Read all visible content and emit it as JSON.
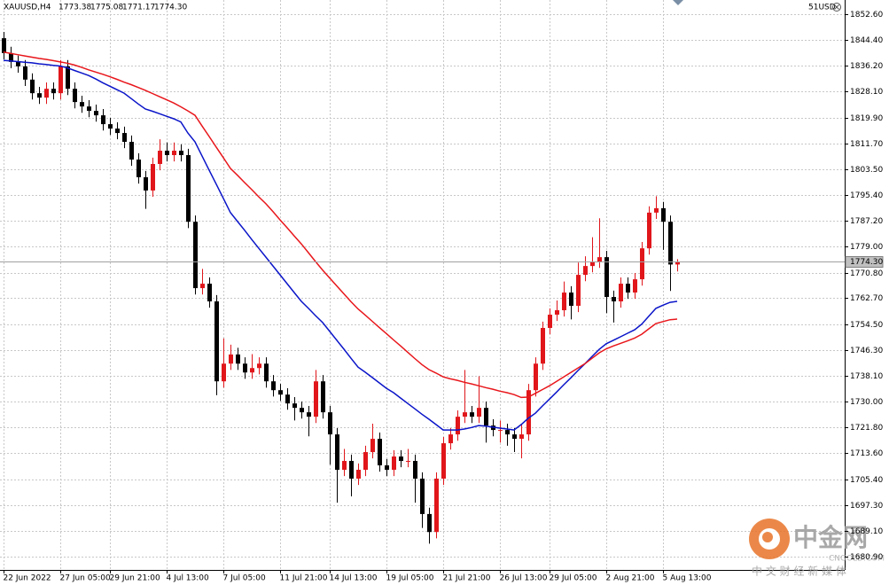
{
  "chart_data": {
    "type": "candlestick",
    "symbol": "XAUUSD,H4",
    "header_values": [
      "1773.38",
      "1775.08",
      "1771.17",
      "1774.30"
    ],
    "account": "51USD",
    "watermark": {
      "name": "中金网",
      "site": "CNGOLD.COM",
      "slogan": "中 文 财 经 新 媒 体"
    },
    "categories": [
      "22 Jun 2022",
      null,
      null,
      null,
      null,
      null,
      null,
      null,
      "27 Jun 05:00",
      null,
      null,
      null,
      null,
      null,
      null,
      "29 Jun 21:00",
      null,
      null,
      null,
      null,
      null,
      null,
      null,
      "4 Jul 13:00",
      null,
      null,
      null,
      null,
      null,
      null,
      null,
      "7 Jul 05:00",
      null,
      null,
      null,
      null,
      null,
      null,
      null,
      "11 Jul 21:00",
      null,
      null,
      null,
      null,
      null,
      null,
      "14 Jul 13:00",
      null,
      null,
      null,
      null,
      null,
      null,
      null,
      "19 Jul 05:00",
      null,
      null,
      null,
      null,
      null,
      null,
      null,
      "21 Jul 21:00",
      null,
      null,
      null,
      null,
      null,
      null,
      null,
      "26 Jul 13:00",
      null,
      null,
      null,
      null,
      null,
      null,
      "29 Jul 05:00",
      null,
      null,
      null,
      null,
      null,
      null,
      null,
      "2 Aug 21:00",
      null,
      null,
      null,
      null,
      null,
      null,
      null,
      "5 Aug 13:00",
      null,
      null
    ],
    "open": [
      1845.0,
      1840.3,
      1837.5,
      1836.1,
      1831.9,
      1827.6,
      1826.2,
      1829.0,
      1827.6,
      1836.1,
      1829.0,
      1824.8,
      1823.4,
      1822.0,
      1820.6,
      1817.8,
      1816.4,
      1815.0,
      1812.2,
      1806.6,
      1801.0,
      1796.8,
      1805.2,
      1809.4,
      1808.0,
      1809.4,
      1808.0,
      1786.9,
      1765.9,
      1767.3,
      1761.7,
      1736.4,
      1742.0,
      1744.9,
      1742.0,
      1739.2,
      1740.6,
      1742.0,
      1736.4,
      1733.6,
      1732.2,
      1729.4,
      1728.0,
      1726.6,
      1725.2,
      1736.4,
      1726.6,
      1719.6,
      1708.4,
      1711.2,
      1705.6,
      1708.4,
      1714.0,
      1718.2,
      1709.8,
      1708.4,
      1712.6,
      1711.2,
      1711.2,
      1705.6,
      1694.4,
      1688.7,
      1705.6,
      1716.8,
      1719.6,
      1725.2,
      1726.6,
      1725.2,
      1728.0,
      1722.4,
      1721.0,
      1721.0,
      1719.6,
      1718.2,
      1719.6,
      1733.6,
      1742.0,
      1753.3,
      1757.5,
      1758.9,
      1764.5,
      1760.3,
      1770.1,
      1772.9,
      1774.3,
      1775.7,
      1763.1,
      1761.7,
      1767.3,
      1764.5,
      1768.7,
      1778.5,
      1789.8,
      1791.2,
      1786.9,
      1773.38
    ],
    "high": [
      1847.0,
      1842.3,
      1839.5,
      1838.1,
      1833.9,
      1829.6,
      1831.0,
      1831.0,
      1838.1,
      1838.1,
      1831.0,
      1826.8,
      1825.4,
      1824.0,
      1822.6,
      1819.8,
      1818.4,
      1817.0,
      1814.2,
      1808.6,
      1803.0,
      1807.2,
      1813.0,
      1812.0,
      1812.0,
      1811.4,
      1810.0,
      1788.9,
      1772.0,
      1769.3,
      1763.7,
      1750.0,
      1748.0,
      1747.0,
      1744.0,
      1745.0,
      1744.0,
      1744.0,
      1738.4,
      1735.6,
      1734.2,
      1731.4,
      1730.0,
      1728.6,
      1740.0,
      1738.4,
      1728.6,
      1721.6,
      1715.0,
      1713.2,
      1710.4,
      1716.0,
      1723.0,
      1720.2,
      1711.8,
      1714.6,
      1714.6,
      1715.0,
      1713.2,
      1707.6,
      1696.4,
      1707.6,
      1718.8,
      1721.6,
      1727.2,
      1740.0,
      1728.6,
      1738.0,
      1730.0,
      1724.4,
      1724.0,
      1723.0,
      1721.6,
      1723.0,
      1735.6,
      1744.0,
      1755.3,
      1759.5,
      1762.0,
      1768.0,
      1766.5,
      1774.0,
      1776.0,
      1782.0,
      1788.0,
      1777.7,
      1765.1,
      1769.3,
      1769.3,
      1770.7,
      1780.5,
      1791.8,
      1795.0,
      1793.2,
      1788.9,
      1775.08
    ],
    "low": [
      1838.3,
      1835.5,
      1834.1,
      1829.9,
      1825.6,
      1824.2,
      1824.2,
      1825.6,
      1825.6,
      1827.0,
      1822.8,
      1821.4,
      1820.0,
      1818.6,
      1815.8,
      1814.4,
      1813.0,
      1810.2,
      1804.6,
      1799.0,
      1791.0,
      1794.8,
      1803.2,
      1806.0,
      1806.0,
      1806.0,
      1784.9,
      1763.9,
      1763.9,
      1759.7,
      1732.0,
      1734.4,
      1740.0,
      1740.0,
      1737.2,
      1737.2,
      1738.6,
      1734.4,
      1731.6,
      1730.2,
      1727.4,
      1724.0,
      1724.6,
      1719.0,
      1723.2,
      1724.6,
      1710.0,
      1698.0,
      1706.4,
      1700.0,
      1703.6,
      1706.4,
      1712.0,
      1707.8,
      1706.4,
      1706.4,
      1709.2,
      1709.2,
      1698.0,
      1690.0,
      1685.0,
      1686.7,
      1703.6,
      1714.8,
      1717.6,
      1723.2,
      1723.2,
      1723.2,
      1717.0,
      1719.0,
      1717.0,
      1716.0,
      1714.0,
      1712.0,
      1717.6,
      1731.6,
      1740.0,
      1751.3,
      1755.5,
      1756.9,
      1756.0,
      1758.3,
      1768.1,
      1770.9,
      1772.3,
      1758.0,
      1755.0,
      1759.7,
      1762.5,
      1762.5,
      1766.7,
      1776.5,
      1787.8,
      1778.0,
      1765.0,
      1771.17
    ],
    "close": [
      1840.3,
      1837.5,
      1836.1,
      1831.9,
      1827.6,
      1826.2,
      1829.0,
      1827.6,
      1836.1,
      1829.0,
      1824.8,
      1823.4,
      1822.0,
      1820.6,
      1817.8,
      1816.4,
      1815.0,
      1812.2,
      1806.6,
      1801.0,
      1796.8,
      1805.2,
      1809.4,
      1808.0,
      1809.4,
      1808.0,
      1786.9,
      1765.9,
      1767.3,
      1761.7,
      1736.4,
      1742.0,
      1744.9,
      1742.0,
      1739.2,
      1740.6,
      1742.0,
      1736.4,
      1733.6,
      1732.2,
      1729.4,
      1728.0,
      1726.6,
      1725.2,
      1736.4,
      1726.6,
      1719.6,
      1708.4,
      1711.2,
      1705.6,
      1708.4,
      1714.0,
      1718.2,
      1709.8,
      1708.4,
      1712.6,
      1711.2,
      1711.2,
      1705.6,
      1694.4,
      1688.7,
      1705.6,
      1716.8,
      1719.6,
      1725.2,
      1726.6,
      1725.2,
      1728.0,
      1722.4,
      1721.0,
      1721.0,
      1719.6,
      1718.2,
      1719.6,
      1733.6,
      1742.0,
      1753.3,
      1757.5,
      1758.9,
      1764.5,
      1760.3,
      1770.1,
      1772.9,
      1774.3,
      1775.7,
      1763.1,
      1761.7,
      1767.3,
      1764.5,
      1768.7,
      1778.5,
      1789.8,
      1791.2,
      1786.9,
      1773.38,
      1774.3
    ],
    "up_color": "#e0161b",
    "down_color": "#000000",
    "lines": [
      {
        "color": "#0a14c8",
        "values": [
          1838.0,
          1837.8,
          1837.6,
          1837.4,
          1837.2,
          1836.9,
          1836.7,
          1836.4,
          1836.2,
          1835.6,
          1834.8,
          1834.0,
          1833.2,
          1832.1,
          1830.9,
          1829.8,
          1828.7,
          1827.6,
          1825.9,
          1824.2,
          1822.6,
          1821.9,
          1821.1,
          1820.3,
          1819.5,
          1818.5,
          1815.0,
          1812.2,
          1807.7,
          1803.2,
          1798.8,
          1794.3,
          1789.8,
          1787.0,
          1784.2,
          1781.3,
          1778.5,
          1775.7,
          1772.9,
          1770.1,
          1767.3,
          1764.5,
          1761.7,
          1759.5,
          1757.2,
          1755.0,
          1752.2,
          1749.4,
          1746.6,
          1743.7,
          1740.9,
          1739.3,
          1737.6,
          1735.9,
          1734.2,
          1732.8,
          1731.1,
          1729.4,
          1727.7,
          1726.0,
          1724.4,
          1722.7,
          1721.0,
          1721.0,
          1721.0,
          1721.3,
          1721.8,
          1722.4,
          1722.2,
          1721.9,
          1721.6,
          1721.3,
          1721.0,
          1722.7,
          1724.7,
          1726.3,
          1728.6,
          1730.8,
          1733.0,
          1735.3,
          1737.5,
          1739.8,
          1742.0,
          1744.3,
          1746.5,
          1748.3,
          1749.4,
          1750.5,
          1751.6,
          1752.7,
          1754.5,
          1757.0,
          1759.5,
          1760.5,
          1761.4,
          1761.7
        ]
      },
      {
        "color": "#e8161b",
        "values": [
          1840.6,
          1840.2,
          1839.8,
          1839.4,
          1839.0,
          1838.6,
          1838.3,
          1837.9,
          1837.5,
          1837.1,
          1836.5,
          1835.8,
          1835.0,
          1834.3,
          1833.6,
          1832.8,
          1832.0,
          1831.1,
          1830.3,
          1829.4,
          1828.5,
          1827.5,
          1826.5,
          1825.5,
          1824.5,
          1823.3,
          1822.0,
          1820.6,
          1817.2,
          1813.9,
          1810.5,
          1807.2,
          1803.8,
          1801.6,
          1799.3,
          1797.1,
          1794.8,
          1792.6,
          1790.1,
          1787.5,
          1785.0,
          1782.4,
          1779.9,
          1777.1,
          1774.3,
          1771.6,
          1769.1,
          1766.6,
          1764.1,
          1761.6,
          1759.3,
          1757.4,
          1755.4,
          1753.4,
          1751.5,
          1749.5,
          1747.6,
          1745.6,
          1743.6,
          1741.7,
          1740.1,
          1739.0,
          1737.8,
          1737.2,
          1736.7,
          1736.1,
          1735.6,
          1735.0,
          1734.4,
          1733.9,
          1733.3,
          1732.8,
          1732.2,
          1731.3,
          1731.4,
          1732.6,
          1733.8,
          1735.0,
          1736.4,
          1737.8,
          1739.2,
          1740.6,
          1742.0,
          1743.7,
          1745.4,
          1746.7,
          1747.6,
          1748.4,
          1749.2,
          1750.1,
          1751.3,
          1753.0,
          1754.7,
          1755.3,
          1755.9,
          1756.1
        ]
      }
    ],
    "current_price": {
      "value": 1774.3,
      "label": "1774.30"
    },
    "ylim": [
      1676.7,
      1857.1
    ],
    "yticks": [
      {
        "value": 1852.6,
        "label": "1852.60"
      },
      {
        "value": 1844.4,
        "label": "1844.40"
      },
      {
        "value": 1836.2,
        "label": "1836.20"
      },
      {
        "value": 1828.1,
        "label": "1828.10"
      },
      {
        "value": 1819.9,
        "label": "1819.90"
      },
      {
        "value": 1811.7,
        "label": "1811.70"
      },
      {
        "value": 1803.5,
        "label": "1803.50"
      },
      {
        "value": 1795.4,
        "label": "1795.40"
      },
      {
        "value": 1787.2,
        "label": "1787.20"
      },
      {
        "value": 1779,
        "label": "1779.00"
      },
      {
        "value": 1770.8,
        "label": "1770.80"
      },
      {
        "value": 1762.7,
        "label": "1762.70"
      },
      {
        "value": 1754.5,
        "label": "1754.50"
      },
      {
        "value": 1746.3,
        "label": "1746.30"
      },
      {
        "value": 1738.1,
        "label": "1738.10"
      },
      {
        "value": 1730,
        "label": "1730.00"
      },
      {
        "value": 1721.8,
        "label": "1721.80"
      },
      {
        "value": 1713.6,
        "label": "1713.60"
      },
      {
        "value": 1705.4,
        "label": "1705.40"
      },
      {
        "value": 1697.3,
        "label": "1697.30"
      },
      {
        "value": 1689.1,
        "label": "1689.10"
      },
      {
        "value": 1680.9,
        "label": "1680.90"
      }
    ],
    "grid": true
  }
}
